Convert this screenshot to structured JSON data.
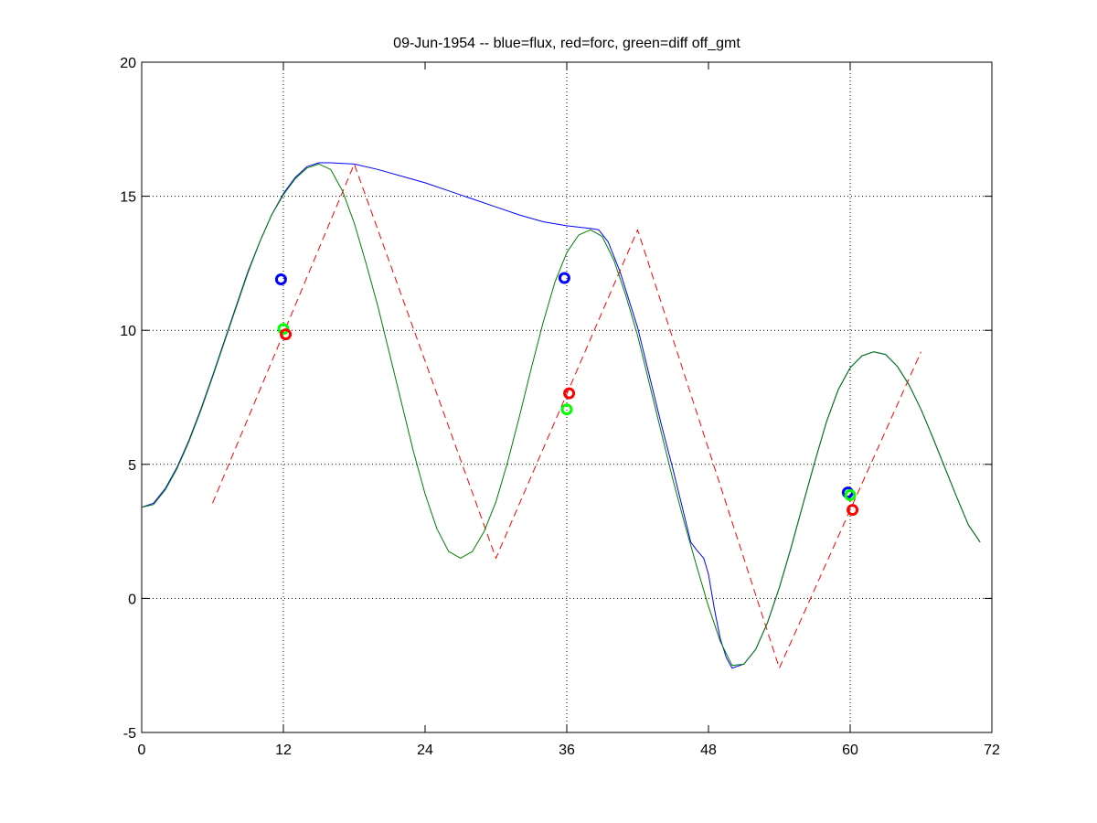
{
  "chart_data": {
    "type": "line",
    "title": "09-Jun-1954 -- blue=flux, red=forc, green=diff off_gmt",
    "xlabel": "",
    "ylabel": "",
    "xlim": [
      0,
      72
    ],
    "ylim": [
      -5,
      20
    ],
    "xticks": [
      0,
      12,
      24,
      36,
      48,
      60,
      72
    ],
    "yticks": [
      -5,
      0,
      5,
      10,
      15,
      20
    ],
    "grid": true,
    "grid_x": [
      12,
      36,
      60
    ],
    "grid_y": [
      0,
      5,
      10,
      15
    ],
    "series": [
      {
        "color": "#0000ff",
        "style": "solid",
        "points": [
          [
            0,
            3.4
          ],
          [
            1,
            3.55
          ],
          [
            2,
            4.1
          ],
          [
            3,
            4.9
          ],
          [
            4,
            5.9
          ],
          [
            5,
            7.05
          ],
          [
            6,
            8.3
          ],
          [
            7,
            9.6
          ],
          [
            8,
            10.9
          ],
          [
            9,
            12.2
          ],
          [
            10,
            13.3
          ],
          [
            11,
            14.3
          ],
          [
            12,
            15.1
          ],
          [
            13,
            15.7
          ],
          [
            14,
            16.1
          ],
          [
            15,
            16.25
          ],
          [
            16,
            16.25
          ],
          [
            18,
            16.2
          ],
          [
            20,
            16.0
          ],
          [
            22,
            15.75
          ],
          [
            24,
            15.5
          ],
          [
            26,
            15.2
          ],
          [
            28,
            14.9
          ],
          [
            30,
            14.6
          ],
          [
            32,
            14.3
          ],
          [
            34,
            14.05
          ],
          [
            36,
            13.9
          ],
          [
            38,
            13.8
          ],
          [
            38.7,
            13.75
          ],
          [
            39.5,
            13.3
          ],
          [
            40.5,
            12.2
          ],
          [
            42,
            10.1
          ],
          [
            44,
            6.5
          ],
          [
            45,
            4.8
          ],
          [
            46,
            3.0
          ],
          [
            46.5,
            2.1
          ],
          [
            47,
            1.8
          ],
          [
            47.6,
            1.5
          ],
          [
            48,
            0.9
          ],
          [
            48.5,
            -0.4
          ],
          [
            49,
            -1.5
          ],
          [
            49.5,
            -2.2
          ],
          [
            50,
            -2.6
          ],
          [
            51,
            -2.45
          ],
          [
            52,
            -1.9
          ],
          [
            53,
            -0.9
          ],
          [
            54,
            0.4
          ],
          [
            55,
            1.9
          ],
          [
            56,
            3.5
          ],
          [
            57,
            5.1
          ],
          [
            58,
            6.6
          ],
          [
            59,
            7.8
          ],
          [
            60,
            8.6
          ],
          [
            61,
            9.05
          ],
          [
            62,
            9.2
          ],
          [
            63,
            9.1
          ],
          [
            64,
            8.65
          ],
          [
            65,
            7.95
          ],
          [
            66,
            7.05
          ],
          [
            67,
            6.0
          ],
          [
            68,
            4.9
          ],
          [
            69,
            3.8
          ],
          [
            70,
            2.75
          ],
          [
            71,
            2.1
          ]
        ]
      },
      {
        "color": "#ff0000",
        "style": "dashed",
        "points": [
          [
            6,
            3.55
          ],
          [
            18,
            16.2
          ],
          [
            30,
            1.5
          ],
          [
            42,
            13.75
          ],
          [
            54,
            -2.6
          ],
          [
            66,
            9.2
          ]
        ]
      },
      {
        "color": "#008000",
        "style": "solid",
        "points": [
          [
            0,
            3.4
          ],
          [
            1,
            3.5
          ],
          [
            2,
            4.05
          ],
          [
            3,
            4.85
          ],
          [
            4,
            5.85
          ],
          [
            5,
            7.0
          ],
          [
            6,
            8.25
          ],
          [
            7,
            9.55
          ],
          [
            8,
            10.85
          ],
          [
            9,
            12.15
          ],
          [
            10,
            13.3
          ],
          [
            11,
            14.3
          ],
          [
            12,
            15.05
          ],
          [
            13,
            15.65
          ],
          [
            14,
            16.05
          ],
          [
            15,
            16.2
          ],
          [
            16,
            16.0
          ],
          [
            17,
            15.2
          ],
          [
            18,
            14.0
          ],
          [
            19,
            12.5
          ],
          [
            20,
            10.9
          ],
          [
            21,
            9.1
          ],
          [
            22,
            7.3
          ],
          [
            23,
            5.5
          ],
          [
            24,
            3.9
          ],
          [
            25,
            2.6
          ],
          [
            26,
            1.75
          ],
          [
            27,
            1.5
          ],
          [
            28,
            1.75
          ],
          [
            29,
            2.5
          ],
          [
            30,
            3.6
          ],
          [
            31,
            5.1
          ],
          [
            32,
            6.8
          ],
          [
            33,
            8.6
          ],
          [
            34,
            10.3
          ],
          [
            35,
            11.8
          ],
          [
            36,
            12.9
          ],
          [
            37,
            13.55
          ],
          [
            38,
            13.75
          ],
          [
            39,
            13.5
          ],
          [
            40,
            12.6
          ],
          [
            41,
            11.3
          ],
          [
            42,
            9.8
          ],
          [
            43,
            8.0
          ],
          [
            44,
            6.2
          ],
          [
            45,
            4.4
          ],
          [
            46,
            2.75
          ],
          [
            47,
            1.2
          ],
          [
            48,
            -0.3
          ],
          [
            49,
            -1.6
          ],
          [
            50,
            -2.5
          ],
          [
            51,
            -2.45
          ],
          [
            52,
            -1.9
          ],
          [
            53,
            -0.9
          ],
          [
            54,
            0.4
          ],
          [
            55,
            1.9
          ],
          [
            56,
            3.5
          ],
          [
            57,
            5.1
          ],
          [
            58,
            6.6
          ],
          [
            59,
            7.8
          ],
          [
            60,
            8.6
          ],
          [
            61,
            9.05
          ],
          [
            62,
            9.2
          ],
          [
            63,
            9.1
          ],
          [
            64,
            8.65
          ],
          [
            65,
            7.95
          ],
          [
            66,
            7.05
          ],
          [
            67,
            6.0
          ],
          [
            68,
            4.9
          ],
          [
            69,
            3.8
          ],
          [
            70,
            2.75
          ],
          [
            71,
            2.1
          ]
        ]
      }
    ],
    "markers": [
      {
        "color": "#0000ff",
        "x": 11.8,
        "y": 11.9
      },
      {
        "color": "#0000ff",
        "x": 35.8,
        "y": 11.95
      },
      {
        "color": "#0000ff",
        "x": 59.8,
        "y": 3.95
      },
      {
        "color": "#00ff00",
        "x": 12.0,
        "y": 10.05
      },
      {
        "color": "#00ff00",
        "x": 36.0,
        "y": 7.05
      },
      {
        "color": "#00ff00",
        "x": 60.0,
        "y": 3.85
      },
      {
        "color": "#ff0000",
        "x": 12.2,
        "y": 9.85
      },
      {
        "color": "#ff0000",
        "x": 36.2,
        "y": 7.65
      },
      {
        "color": "#ff0000",
        "x": 60.2,
        "y": 3.3
      }
    ]
  }
}
